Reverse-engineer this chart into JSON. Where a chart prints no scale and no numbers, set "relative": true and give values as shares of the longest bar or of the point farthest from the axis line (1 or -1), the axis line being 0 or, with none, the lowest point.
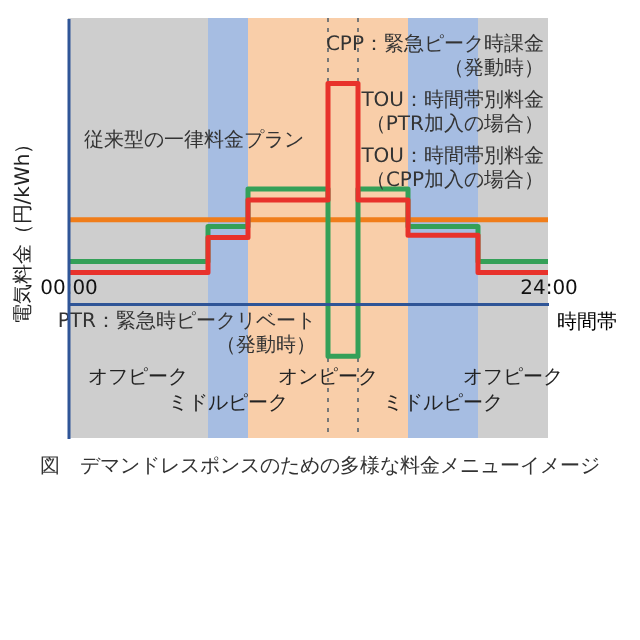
{
  "chart_data": {
    "type": "step",
    "xlabel": "時間帯",
    "ylabel": "電気料金（円/kWh）",
    "relative": true,
    "xlim": [
      0,
      24
    ],
    "xticks": [
      {
        "value": 0,
        "label": "00:00"
      },
      {
        "value": 24,
        "label": "24:00"
      }
    ],
    "grid": false,
    "series": [
      {
        "color": "#f07d1a",
        "x": [
          0,
          24
        ],
        "values": [
          0.38,
          0.38
        ]
      },
      {
        "color": "#34a058",
        "x": [
          0,
          7,
          9,
          13,
          14.5,
          17,
          20.5,
          24
        ],
        "values": [
          0.19,
          0.35,
          0.52,
          -0.24,
          0.52,
          0.35,
          0.19,
          0.19
        ]
      },
      {
        "color": "#e8322b",
        "x": [
          0,
          7,
          9,
          13,
          14.5,
          17,
          20.5,
          24
        ],
        "values": [
          0.14,
          0.3,
          0.47,
          1,
          0.47,
          0.31,
          0.14,
          0.14
        ]
      }
    ],
    "bands": [
      {
        "axis": "x",
        "from": 0,
        "to": 7,
        "label": "オフピーク",
        "color": "#c9c9c9"
      },
      {
        "axis": "x",
        "from": 7,
        "to": 9,
        "label": "ミドルピーク",
        "color": "#9cb6df"
      },
      {
        "axis": "x",
        "from": 9,
        "to": 17,
        "label": "オンピーク",
        "color": "#f8c9a0"
      },
      {
        "axis": "x",
        "from": 17,
        "to": 20.5,
        "label": "ミドルピーク",
        "color": "#9cb6df"
      },
      {
        "axis": "x",
        "from": 20.5,
        "to": 24,
        "label": "オフピーク",
        "color": "#c9c9c9"
      }
    ],
    "ref_lines": [
      {
        "axis": "x",
        "value": 13,
        "color": "#777777",
        "line_style": "dotted"
      },
      {
        "axis": "x",
        "value": 14.5,
        "color": "#777777",
        "line_style": "dotted"
      }
    ],
    "annotations": [
      "従来型の一律料金プラン",
      "CPP：緊急ピーク時課金（発動時）",
      "TOU：時間帯別料金（PTR加入の場合）",
      "TOU：時間帯別料金（CPP加入の場合）",
      "PTR：緊急時ピークリベート（発動時）",
      "図　デマンドレスポンスのための多様な料金メニューイメージ"
    ]
  }
}
